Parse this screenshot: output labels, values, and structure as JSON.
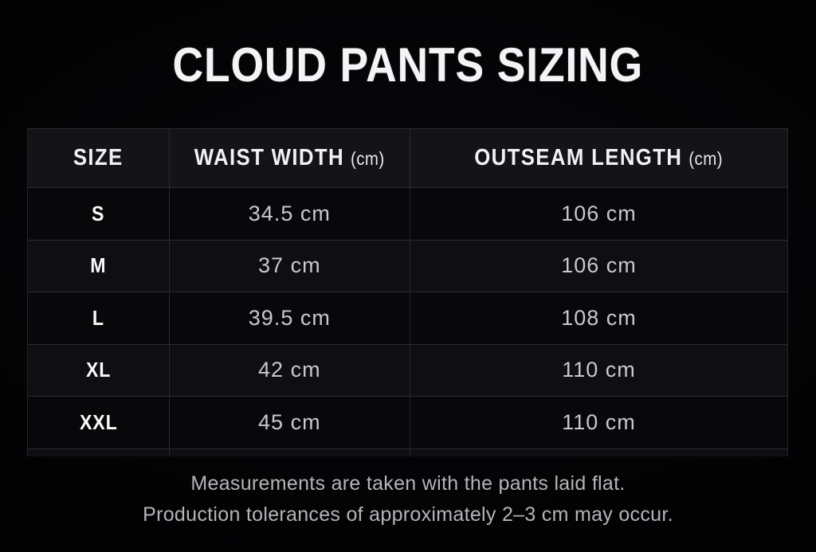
{
  "title": "CLOUD PANTS SIZING",
  "table": {
    "columns": [
      {
        "label": "SIZE",
        "unit": ""
      },
      {
        "label": "WAIST WIDTH",
        "unit": "(cm)"
      },
      {
        "label": "OUTSEAM LENGTH",
        "unit": "(cm)"
      }
    ],
    "rows": [
      {
        "size": "S",
        "waist": "34.5 cm",
        "outseam": "106 cm"
      },
      {
        "size": "M",
        "waist": "37 cm",
        "outseam": "106 cm"
      },
      {
        "size": "L",
        "waist": "39.5 cm",
        "outseam": "108 cm"
      },
      {
        "size": "XL",
        "waist": "42 cm",
        "outseam": "110 cm"
      },
      {
        "size": "XXL",
        "waist": "45 cm",
        "outseam": "110 cm"
      }
    ]
  },
  "footer": {
    "line1": "Measurements are taken with the pants laid flat.",
    "line2": "Production tolerances of approximately 2–3 cm may occur."
  },
  "colors": {
    "background": "#050507",
    "header_row": "#131318",
    "row_dark": "#08080b",
    "row_light": "#0f0f13",
    "border": "#2c2c30",
    "title_text": "#f4f4f6",
    "value_text": "#c9c9cd",
    "footnote_text": "#b4b4b9"
  },
  "chart_data": {
    "type": "table",
    "title": "CLOUD PANTS SIZING",
    "columns": [
      "SIZE",
      "WAIST WIDTH (cm)",
      "OUTSEAM LENGTH (cm)"
    ],
    "rows": [
      [
        "S",
        34.5,
        106
      ],
      [
        "M",
        37,
        106
      ],
      [
        "L",
        39.5,
        108
      ],
      [
        "XL",
        42,
        110
      ],
      [
        "XXL",
        45,
        110
      ]
    ],
    "notes": [
      "Measurements are taken with the pants laid flat.",
      "Production tolerances of approximately 2–3 cm may occur."
    ],
    "layout_hints": {
      "theme": "dark",
      "zebra_striping": true,
      "last_row_clipped": true
    }
  }
}
